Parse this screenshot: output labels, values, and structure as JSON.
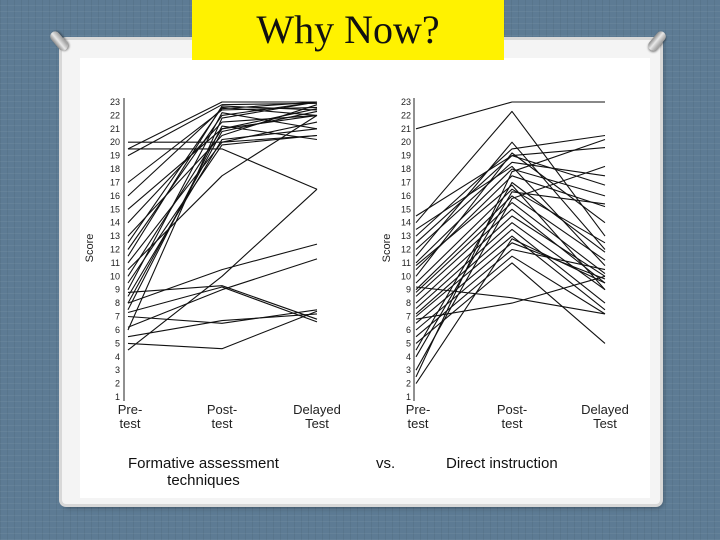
{
  "slide": {
    "title": "Why Now?",
    "caption_left_line1": "Formative assessment",
    "caption_left_line2": "techniques",
    "caption_vs": "vs.",
    "caption_right": "Direct instruction"
  },
  "colors": {
    "background": "#5d7b94",
    "title_fill": "#fff200",
    "line": "#111111"
  },
  "chart_data": [
    {
      "type": "line",
      "ylabel": "Score",
      "ylim": [
        1,
        23
      ],
      "yticks": [
        1,
        2,
        3,
        4,
        5,
        6,
        7,
        8,
        9,
        10,
        11,
        12,
        13,
        14,
        15,
        16,
        17,
        18,
        19,
        20,
        21,
        22,
        23
      ],
      "categories": [
        "Pre-test",
        "Post-test",
        "Delayed Test"
      ],
      "category_labels": [
        [
          "Pre-",
          "test"
        ],
        [
          "Post-",
          "test"
        ],
        [
          "Delayed",
          "Test"
        ]
      ],
      "series": [
        {
          "values": [
            19.5,
            23,
            23
          ]
        },
        {
          "values": [
            19,
            22.8,
            22.9
          ]
        },
        {
          "values": [
            16,
            22.5,
            23
          ]
        },
        {
          "values": [
            15,
            21,
            22.5
          ]
        },
        {
          "values": [
            14,
            21.5,
            22
          ]
        },
        {
          "values": [
            13,
            20.5,
            22.8
          ]
        },
        {
          "values": [
            12,
            22,
            23
          ]
        },
        {
          "values": [
            11,
            20,
            21.5
          ]
        },
        {
          "values": [
            10,
            21,
            22
          ]
        },
        {
          "values": [
            9.5,
            19.8,
            20.5
          ]
        },
        {
          "values": [
            9,
            22.2,
            21
          ]
        },
        {
          "values": [
            8,
            20.8,
            22.3
          ]
        },
        {
          "values": [
            7.5,
            21.2,
            20.2
          ]
        },
        {
          "values": [
            12.5,
            22.6,
            22
          ]
        },
        {
          "values": [
            20,
            20,
            20.5
          ]
        },
        {
          "values": [
            19.5,
            19.5,
            16.5
          ]
        },
        {
          "values": [
            17,
            22.4,
            22.6
          ]
        },
        {
          "values": [
            10.5,
            17.5,
            22
          ]
        },
        {
          "values": [
            6,
            21.8,
            23
          ]
        },
        {
          "values": [
            8.5,
            20.2,
            21
          ]
        },
        {
          "values": [
            11.5,
            22.7,
            22.4
          ]
        },
        {
          "values": [
            8.8,
            9.3,
            6.8
          ]
        },
        {
          "values": [
            8,
            10.5,
            12.4
          ]
        },
        {
          "values": [
            7,
            6.5,
            7.5
          ]
        },
        {
          "values": [
            6.2,
            9,
            11.3
          ]
        },
        {
          "values": [
            5.5,
            6.7,
            7.2
          ]
        },
        {
          "values": [
            5,
            4.6,
            7.4
          ]
        },
        {
          "values": [
            4.5,
            10,
            16.5
          ]
        },
        {
          "values": [
            7.3,
            9.2,
            6.6
          ]
        }
      ]
    },
    {
      "type": "line",
      "ylabel": "Score",
      "ylim": [
        1,
        23
      ],
      "yticks": [
        1,
        2,
        3,
        4,
        5,
        6,
        7,
        8,
        9,
        10,
        11,
        12,
        13,
        14,
        15,
        16,
        17,
        18,
        19,
        20,
        21,
        22,
        23
      ],
      "categories": [
        "Pre-test",
        "Post-test",
        "Delayed Test"
      ],
      "category_labels": [
        [
          "Pre-",
          "test"
        ],
        [
          "Post-",
          "test"
        ],
        [
          "Delayed",
          "Test"
        ]
      ],
      "series": [
        {
          "values": [
            21,
            23,
            23
          ]
        },
        {
          "values": [
            14,
            22.3,
            13
          ]
        },
        {
          "values": [
            13,
            19.5,
            20.5
          ]
        },
        {
          "values": [
            12.5,
            19,
            19.6
          ]
        },
        {
          "values": [
            12,
            18.5,
            17.5
          ]
        },
        {
          "values": [
            11,
            18,
            16
          ]
        },
        {
          "values": [
            10.5,
            17.5,
            15.2
          ]
        },
        {
          "values": [
            10,
            19.2,
            14
          ]
        },
        {
          "values": [
            9.5,
            16.5,
            12.5
          ]
        },
        {
          "values": [
            9,
            16,
            11.2
          ]
        },
        {
          "values": [
            8.8,
            15.5,
            10.2
          ]
        },
        {
          "values": [
            8.5,
            15,
            9.5
          ]
        },
        {
          "values": [
            8,
            14.5,
            10
          ]
        },
        {
          "values": [
            7.6,
            14,
            9
          ]
        },
        {
          "values": [
            7.2,
            13.5,
            8
          ]
        },
        {
          "values": [
            7,
            13,
            7.5
          ]
        },
        {
          "values": [
            6.5,
            12.5,
            9.8
          ]
        },
        {
          "values": [
            6,
            12,
            10.5
          ]
        },
        {
          "values": [
            5.5,
            11.5,
            7.2
          ]
        },
        {
          "values": [
            5,
            11,
            5
          ]
        },
        {
          "values": [
            4.5,
            17,
            11.8
          ]
        },
        {
          "values": [
            4,
            16.3,
            15.4
          ]
        },
        {
          "values": [
            3,
            15.8,
            18.2
          ]
        },
        {
          "values": [
            2.5,
            17.8,
            20.2
          ]
        },
        {
          "values": [
            2,
            12.8,
            9.5
          ]
        },
        {
          "values": [
            14.5,
            19,
            16.8
          ]
        },
        {
          "values": [
            13.5,
            18.2,
            10.8
          ]
        },
        {
          "values": [
            6.8,
            8,
            10
          ]
        },
        {
          "values": [
            9.2,
            8.4,
            7.2
          ]
        },
        {
          "values": [
            11.5,
            20,
            12
          ]
        },
        {
          "values": [
            10.8,
            16.8,
            9
          ]
        }
      ]
    }
  ]
}
